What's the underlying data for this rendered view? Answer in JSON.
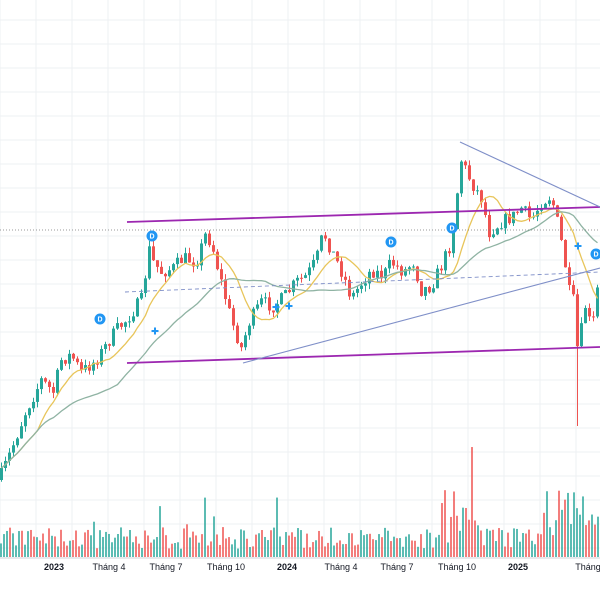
{
  "colors": {
    "up": "#26a69a",
    "down": "#ef5350",
    "ma_fast": "#e8c55a",
    "ma_slow": "#8fb3a3",
    "channel": "#9c27b0",
    "trendline": "#7f8fc8",
    "dotted": "#777777",
    "marker_blue": "#2196f3",
    "grid": "#eef0f3"
  },
  "chart_data": {
    "type": "candlestick",
    "x_tick_labels": [
      "2023",
      "Tháng 4",
      "Tháng 7",
      "Tháng 10",
      "2024",
      "Tháng 4",
      "Tháng 7",
      "Tháng 10",
      "2025",
      "Tháng"
    ],
    "bold_tick_labels": [
      "2023",
      "2024",
      "2025"
    ],
    "series": [
      {
        "name": "",
        "kind": "price-candles"
      },
      {
        "name": "",
        "kind": "moving-average-fast"
      },
      {
        "name": "",
        "kind": "moving-average-slow"
      },
      {
        "name": "",
        "kind": "volume-bars"
      }
    ],
    "markers": {
      "dividend_label": "D",
      "dividend_count": 5,
      "plus_count": 4
    },
    "annotations": [
      "upper-channel-line",
      "lower-channel-line",
      "rising-trendline",
      "descending-trendline",
      "dotted-level",
      "dashed-level"
    ],
    "grid": true
  }
}
